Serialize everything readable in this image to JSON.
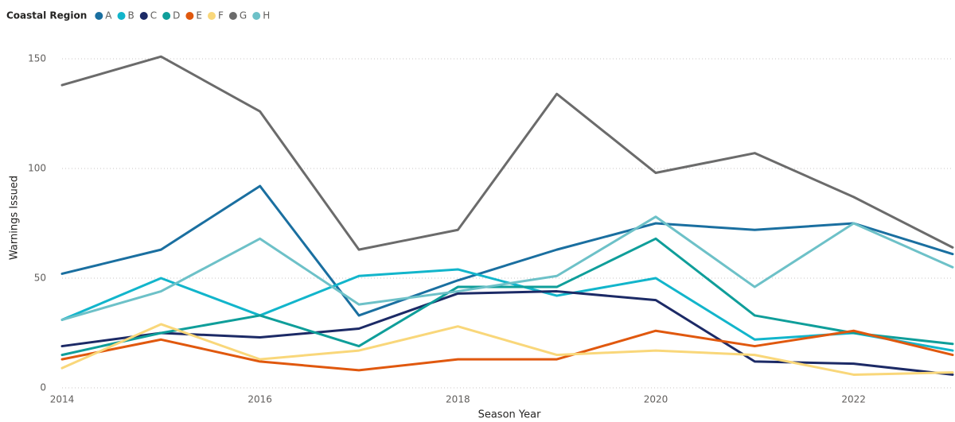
{
  "chart_data": {
    "type": "line",
    "legend_title": "Coastal Region",
    "x_label": "Season Year",
    "y_label": "Warnings Issued",
    "x": [
      2014,
      2015,
      2016,
      2017,
      2018,
      2019,
      2020,
      2021,
      2022,
      2023
    ],
    "xlim": [
      2014,
      2023
    ],
    "xticks": [
      2014,
      2016,
      2018,
      2020,
      2022
    ],
    "ylim": [
      0,
      155
    ],
    "yticks": [
      0,
      50,
      100,
      150
    ],
    "grid": true,
    "legend": "top-left",
    "series": [
      {
        "name": "A",
        "color": "#1a6fa0",
        "values": [
          52,
          63,
          92,
          33,
          49,
          63,
          75,
          72,
          75,
          61
        ]
      },
      {
        "name": "B",
        "color": "#12b5cb",
        "values": [
          31,
          50,
          33,
          51,
          54,
          42,
          50,
          22,
          25,
          17
        ]
      },
      {
        "name": "C",
        "color": "#1c2a66",
        "values": [
          19,
          25,
          23,
          27,
          43,
          44,
          40,
          12,
          11,
          6
        ]
      },
      {
        "name": "D",
        "color": "#0f9e9a",
        "values": [
          15,
          25,
          33,
          19,
          46,
          46,
          68,
          33,
          25,
          20
        ]
      },
      {
        "name": "E",
        "color": "#e0580e",
        "values": [
          13,
          22,
          12,
          8,
          13,
          13,
          26,
          19,
          26,
          15
        ]
      },
      {
        "name": "F",
        "color": "#f9d77a",
        "values": [
          9,
          29,
          13,
          17,
          28,
          15,
          17,
          15,
          6,
          7
        ]
      },
      {
        "name": "G",
        "color": "#6b6b6b",
        "values": [
          138,
          151,
          126,
          63,
          72,
          134,
          98,
          107,
          87,
          64
        ]
      },
      {
        "name": "H",
        "color": "#6dc1c8",
        "values": [
          31,
          44,
          68,
          38,
          44,
          51,
          78,
          46,
          75,
          55
        ]
      }
    ]
  }
}
